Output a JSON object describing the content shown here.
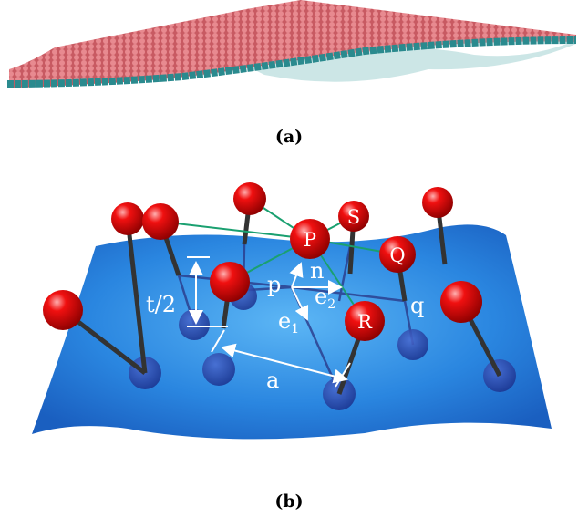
{
  "panel_a": {
    "caption": "(a)"
  },
  "panel_b": {
    "caption": "(b)",
    "labels": {
      "P": "P",
      "S": "S",
      "Q": "Q",
      "R": "R",
      "n": "n",
      "p": "p",
      "q": "q",
      "e1": {
        "text": "e",
        "subscript": "1"
      },
      "e2": {
        "text": "e",
        "subscript": "2"
      },
      "half_thickness": "t/2",
      "spacing": "a"
    }
  }
}
